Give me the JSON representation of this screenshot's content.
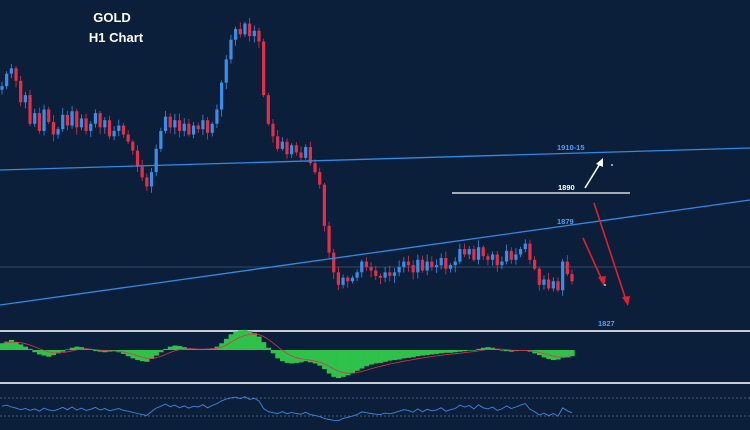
{
  "colors": {
    "background": "#0c1f3a",
    "bull": "#3a8ee8",
    "bear": "#e0304a",
    "trendline": "#2f8be6",
    "resistance": "#ffffff",
    "hist": "#2fc24a",
    "signal": "#e0304a",
    "rsi": "#3f86e0",
    "separator": "#c9ccd2"
  },
  "chart_data": {
    "type": "candlestick",
    "title": "GOLD",
    "subtitle": "H1 Chart",
    "levels": [
      {
        "label": "1910-15",
        "color": "#4aa0ff"
      },
      {
        "label": "1890",
        "color": "#ffffff"
      },
      {
        "label": "1879",
        "color": "#4aa0ff"
      },
      {
        "label": "1827",
        "color": "#4aa0ff"
      }
    ],
    "closes": [
      1893,
      1900,
      1903,
      1896,
      1884,
      1888,
      1872,
      1878,
      1868,
      1880,
      1873,
      1866,
      1869,
      1877,
      1871,
      1879,
      1870,
      1875,
      1868,
      1872,
      1878,
      1870,
      1874,
      1865,
      1868,
      1871,
      1866,
      1862,
      1857,
      1848,
      1842,
      1837,
      1845,
      1858,
      1868,
      1876,
      1870,
      1874,
      1868,
      1872,
      1866,
      1871,
      1869,
      1874,
      1867,
      1872,
      1880,
      1895,
      1908,
      1919,
      1925,
      1922,
      1928,
      1921,
      1924,
      1918,
      1888,
      1872,
      1865,
      1858,
      1862,
      1855,
      1860,
      1856,
      1853,
      1859,
      1850,
      1845,
      1838,
      1815,
      1800,
      1789,
      1782,
      1786,
      1784,
      1786,
      1789,
      1795,
      1792,
      1790,
      1787,
      1786,
      1789,
      1787,
      1789,
      1792,
      1795,
      1793,
      1789,
      1796,
      1790,
      1795,
      1792,
      1793,
      1797,
      1791,
      1793,
      1795,
      1802,
      1799,
      1802,
      1796,
      1803,
      1798,
      1796,
      1799,
      1793,
      1795,
      1801,
      1796,
      1799,
      1802,
      1805,
      1796,
      1791,
      1782,
      1785,
      1780,
      1784,
      1779,
      1795,
      1788,
      1784
    ],
    "macd_hist": [
      1.2,
      1.5,
      1.8,
      1.4,
      1.0,
      0.6,
      0.2,
      -0.4,
      -0.8,
      -1.0,
      -1.2,
      -0.9,
      -0.6,
      -0.3,
      0.1,
      0.4,
      0.6,
      0.5,
      0.3,
      0.1,
      -0.2,
      -0.3,
      -0.4,
      -0.3,
      -0.2,
      -0.4,
      -0.7,
      -1.1,
      -1.5,
      -1.8,
      -2.0,
      -2.1,
      -1.6,
      -1.0,
      -0.4,
      0.2,
      0.6,
      0.8,
      0.7,
      0.5,
      0.3,
      0.2,
      0.1,
      0.1,
      0.2,
      0.3,
      0.6,
      1.2,
      2.0,
      2.8,
      3.3,
      3.5,
      3.6,
      3.4,
      3.0,
      2.4,
      1.4,
      0.4,
      -0.6,
      -1.5,
      -2.0,
      -2.3,
      -2.4,
      -2.3,
      -2.2,
      -2.0,
      -2.2,
      -2.4,
      -2.8,
      -3.4,
      -4.2,
      -4.8,
      -5.0,
      -4.8,
      -4.5,
      -4.1,
      -3.7,
      -3.3,
      -2.9,
      -2.6,
      -2.4,
      -2.3,
      -2.1,
      -1.9,
      -1.8,
      -1.7,
      -1.5,
      -1.4,
      -1.3,
      -1.1,
      -1.0,
      -0.9,
      -0.8,
      -0.7,
      -0.6,
      -0.5,
      -0.5,
      -0.4,
      -0.3,
      -0.2,
      -0.1,
      0.0,
      0.2,
      0.4,
      0.5,
      0.4,
      0.2,
      0.0,
      -0.2,
      -0.3,
      -0.2,
      -0.1,
      -0.1,
      -0.3,
      -0.6,
      -0.9,
      -1.3,
      -1.6,
      -1.8,
      -1.7,
      -1.4,
      -1.3,
      -1.1
    ],
    "rsi": [
      52,
      55,
      50,
      47,
      43,
      46,
      41,
      45,
      39,
      47,
      42,
      40,
      44,
      49,
      43,
      50,
      42,
      47,
      41,
      44,
      49,
      42,
      46,
      40,
      43,
      46,
      41,
      39,
      36,
      33,
      30,
      28,
      38,
      47,
      52,
      58,
      51,
      55,
      48,
      53,
      47,
      52,
      50,
      56,
      48,
      54,
      59,
      66,
      71,
      74,
      76,
      72,
      77,
      70,
      73,
      66,
      46,
      38,
      35,
      33,
      38,
      32,
      36,
      33,
      31,
      36,
      30,
      28,
      25,
      20,
      17,
      15,
      14,
      20,
      23,
      26,
      30,
      37,
      35,
      33,
      31,
      30,
      34,
      32,
      35,
      39,
      43,
      41,
      36,
      45,
      37,
      44,
      40,
      42,
      48,
      39,
      43,
      46,
      55,
      50,
      54,
      45,
      56,
      48,
      45,
      50,
      41,
      45,
      53,
      46,
      50,
      55,
      59,
      44,
      38,
      29,
      34,
      27,
      33,
      26,
      48,
      40,
      35
    ]
  }
}
